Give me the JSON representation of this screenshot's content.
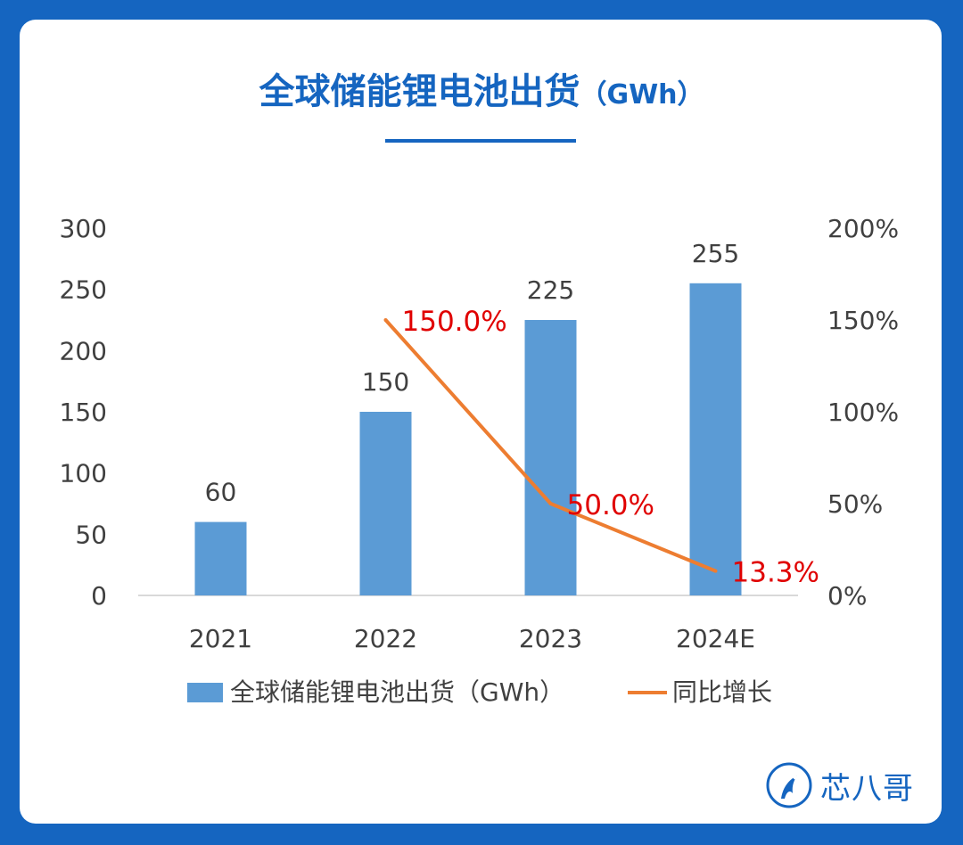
{
  "header": {
    "title": "全球储能锂电池出货",
    "title_unit": "（GWh）"
  },
  "brand": {
    "name": "芯八哥",
    "icon": "bird-logo-icon"
  },
  "colors": {
    "background": "#1565c0",
    "title": "#1565c0",
    "bar": "#5b9bd5",
    "line": "#ed7d31",
    "line_label": "#e00000",
    "axis_text": "#404040"
  },
  "chart_data": {
    "type": "bar",
    "categories": [
      "2021",
      "2022",
      "2023",
      "2024E"
    ],
    "series": [
      {
        "name": "全球储能锂电池出货（GWh）",
        "type": "bar",
        "axis": "left",
        "values": [
          60,
          150,
          225,
          255
        ],
        "labels": [
          "60",
          "150",
          "225",
          "255"
        ]
      },
      {
        "name": "同比增长",
        "type": "line",
        "axis": "right",
        "values": [
          null,
          150.0,
          50.0,
          13.3
        ],
        "labels": [
          "",
          "150.0%",
          "50.0%",
          "13.3%"
        ]
      }
    ],
    "y_left": {
      "ylim": [
        0,
        300
      ],
      "ticks": [
        "0",
        "50",
        "100",
        "150",
        "200",
        "250",
        "300"
      ]
    },
    "y_right": {
      "ylim": [
        0,
        200
      ],
      "ticks": [
        "0%",
        "50%",
        "100%",
        "150%",
        "200%"
      ]
    },
    "grid": false,
    "legend_position": "bottom"
  }
}
